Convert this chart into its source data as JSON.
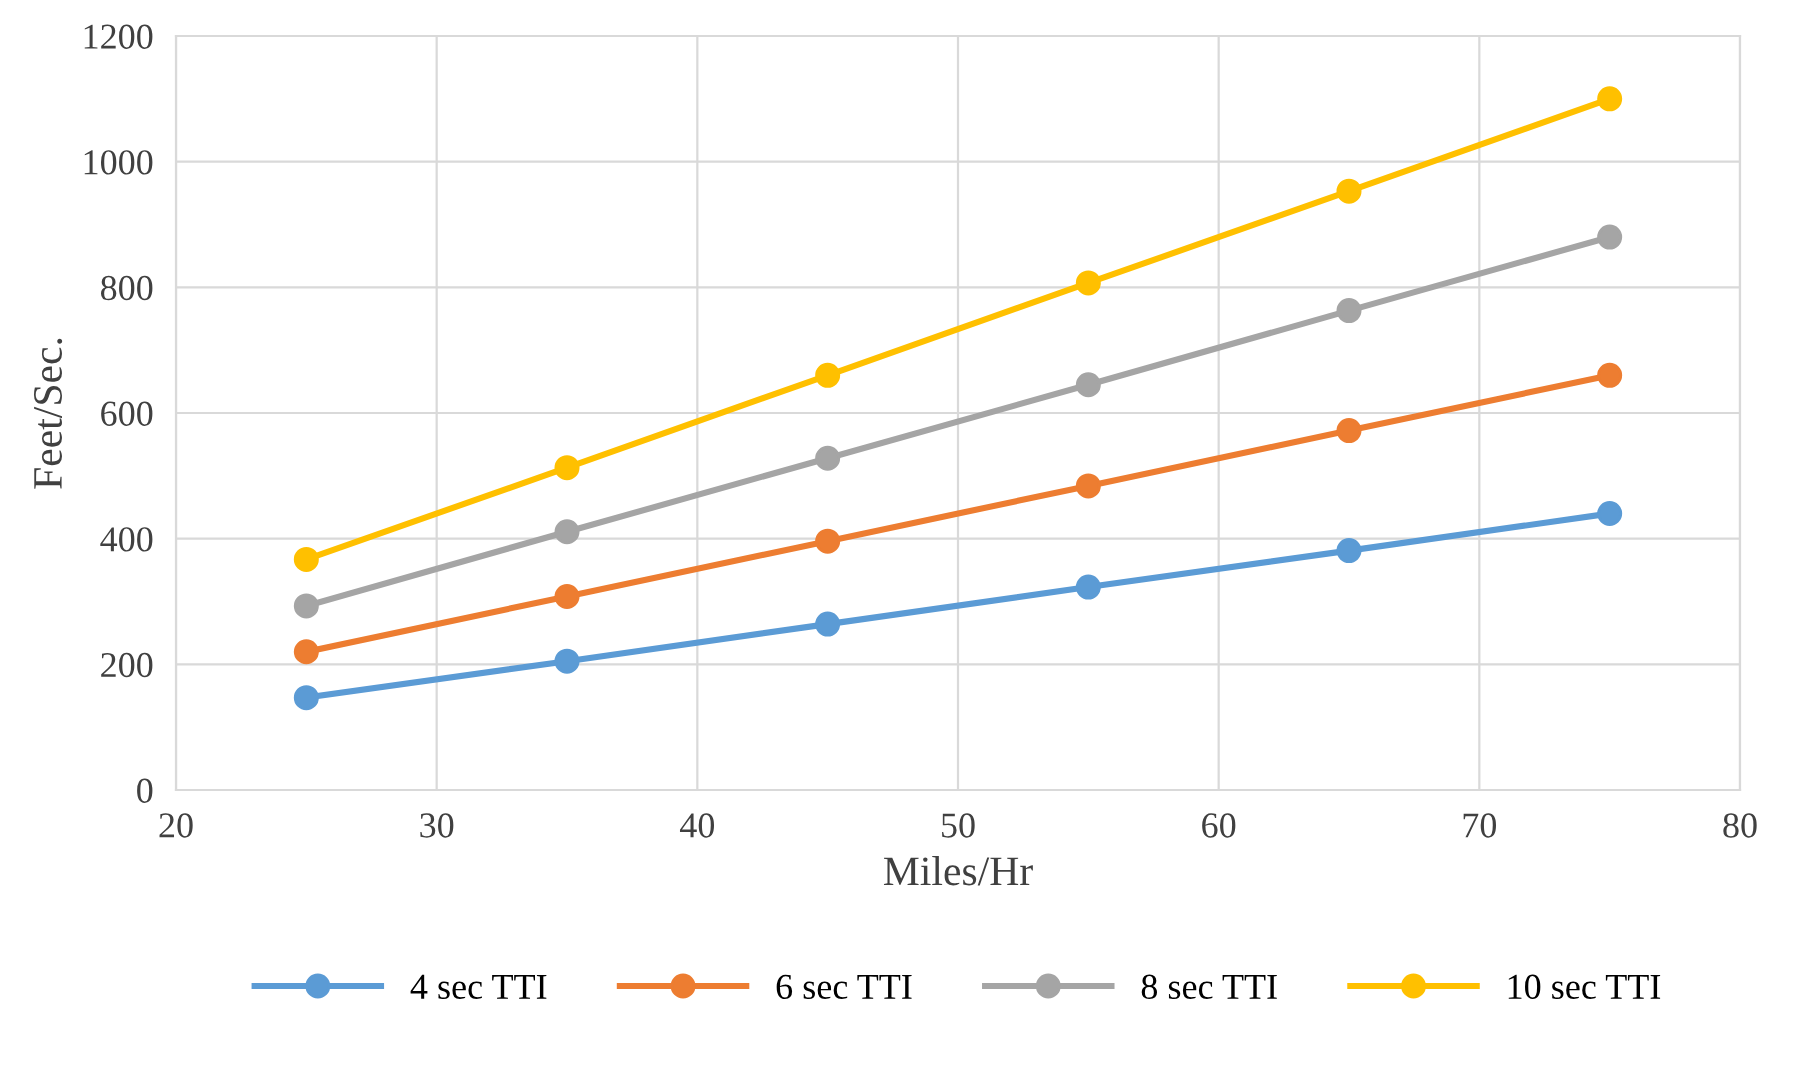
{
  "chart_data": {
    "type": "line",
    "xlabel": "Miles/Hr",
    "ylabel": "Feet/Sec.",
    "x": [
      25,
      35,
      45,
      55,
      65,
      75
    ],
    "series": [
      {
        "name": "4 sec TTI",
        "color": "#5b9bd5",
        "values": [
          147,
          205,
          264,
          323,
          381,
          440
        ]
      },
      {
        "name": "6 sec TTI",
        "color": "#ed7d31",
        "values": [
          220,
          308,
          396,
          484,
          572,
          660
        ]
      },
      {
        "name": "8 sec TTI",
        "color": "#a5a5a5",
        "values": [
          293,
          411,
          528,
          645,
          763,
          880
        ]
      },
      {
        "name": "10 sec TTI",
        "color": "#ffc000",
        "values": [
          367,
          513,
          660,
          807,
          953,
          1100
        ]
      }
    ],
    "xlim": [
      20,
      80
    ],
    "xticks": [
      20,
      30,
      40,
      50,
      60,
      70,
      80
    ],
    "ylim": [
      0,
      1200
    ],
    "yticks": [
      0,
      200,
      400,
      600,
      800,
      1000,
      1200
    ],
    "grid": true,
    "legend": "bottom",
    "marker": "circle",
    "line_style": "solid"
  }
}
